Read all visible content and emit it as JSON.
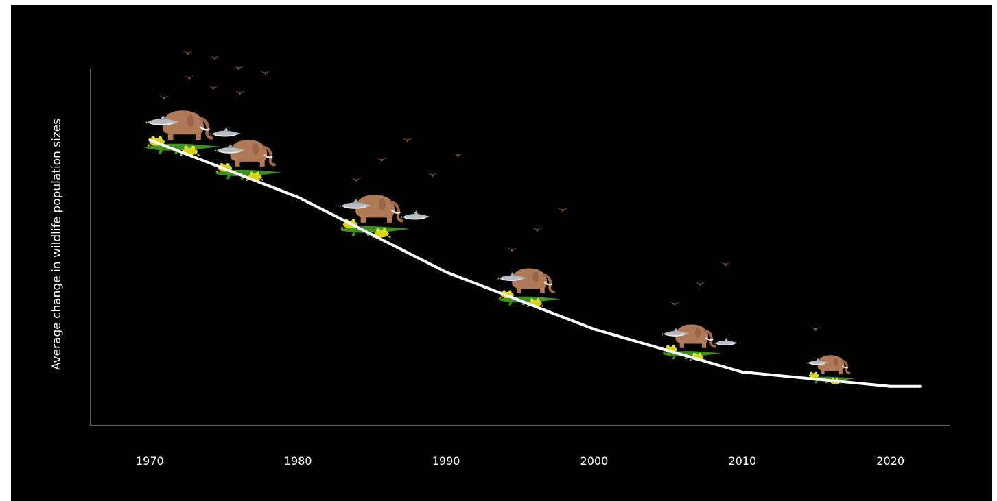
{
  "chart_data": {
    "type": "line",
    "title": "",
    "xlabel": "",
    "ylabel": "Average change in wildlife population sizes",
    "x_ticks": [
      "1970",
      "1980",
      "1990",
      "2000",
      "2010",
      "2020"
    ],
    "xlim": [
      1966,
      2024
    ],
    "ylim": [
      0,
      100
    ],
    "grid": false,
    "series": [
      {
        "x": [
          1970,
          1980,
          1990,
          2000,
          2010,
          2020,
          2022
        ],
        "y": [
          80,
          64,
          43,
          27,
          15,
          11,
          11
        ]
      }
    ],
    "colors": {
      "background": "#000000",
      "line": "#ffffff",
      "axis": "#bbbbbb",
      "elephant": "#b07a58",
      "shark": "#b8bcc2",
      "crocodile": "#3f8f22",
      "frog": "#d8d21a",
      "bird": "#8a5a44"
    },
    "icons": [
      "elephant-icon",
      "shark-icon",
      "crocodile-icon",
      "frog-icon",
      "bird-icon"
    ]
  }
}
